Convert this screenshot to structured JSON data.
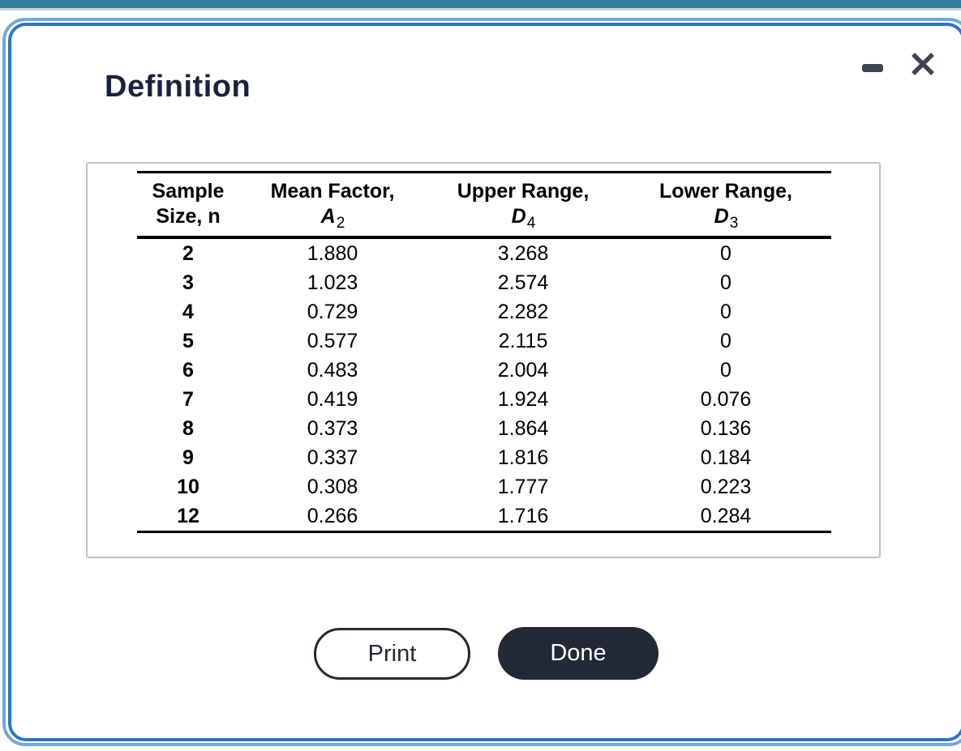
{
  "window": {
    "title": "Definition",
    "controls": {
      "minimize_icon": "minimize-dash",
      "close_icon": "close-x"
    }
  },
  "colors": {
    "topbar_teal": "#337E9B",
    "topbar_strip_gray": "#C9D2DB",
    "frame_outer_blue": "#6FA9DB",
    "frame_inner_blue": "#3174C5",
    "title_navy": "#19223D",
    "icon_slate": "#3E4551",
    "table_border_gray": "#BCC1C8",
    "button_dark": "#212936"
  },
  "table": {
    "columns": [
      {
        "line1": "Sample",
        "line2": "Size, n",
        "symbol": "",
        "sub": ""
      },
      {
        "line1": "Mean Factor,",
        "symbol": "A",
        "sub": "2"
      },
      {
        "line1": "Upper Range,",
        "symbol": "D",
        "sub": "4"
      },
      {
        "line1": "Lower Range,",
        "symbol": "D",
        "sub": "3"
      }
    ],
    "rows": [
      {
        "n": "2",
        "a2": "1.880",
        "d4": "3.268",
        "d3": "0"
      },
      {
        "n": "3",
        "a2": "1.023",
        "d4": "2.574",
        "d3": "0"
      },
      {
        "n": "4",
        "a2": "0.729",
        "d4": "2.282",
        "d3": "0"
      },
      {
        "n": "5",
        "a2": "0.577",
        "d4": "2.115",
        "d3": "0"
      },
      {
        "n": "6",
        "a2": "0.483",
        "d4": "2.004",
        "d3": "0"
      },
      {
        "n": "7",
        "a2": "0.419",
        "d4": "1.924",
        "d3": "0.076"
      },
      {
        "n": "8",
        "a2": "0.373",
        "d4": "1.864",
        "d3": "0.136"
      },
      {
        "n": "9",
        "a2": "0.337",
        "d4": "1.816",
        "d3": "0.184"
      },
      {
        "n": "10",
        "a2": "0.308",
        "d4": "1.777",
        "d3": "0.223"
      },
      {
        "n": "12",
        "a2": "0.266",
        "d4": "1.716",
        "d3": "0.284"
      }
    ]
  },
  "buttons": {
    "print_label": "Print",
    "done_label": "Done"
  }
}
